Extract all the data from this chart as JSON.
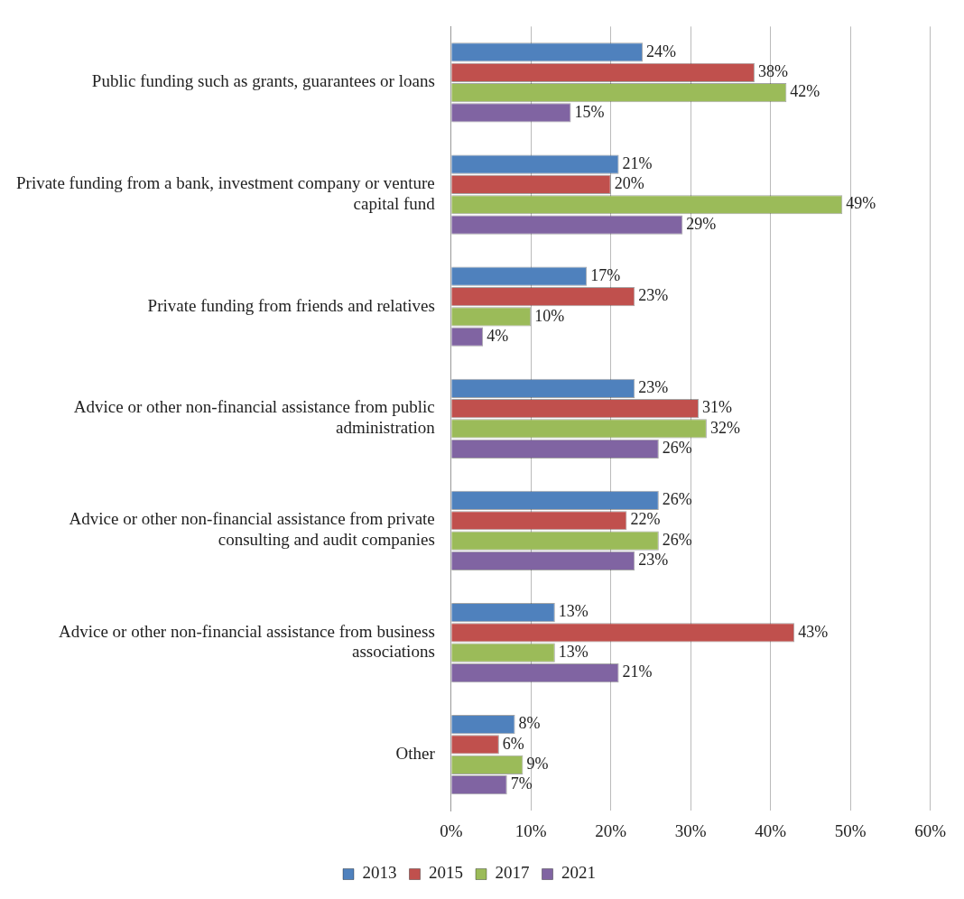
{
  "chart_data": {
    "type": "bar",
    "orientation": "horizontal",
    "categories": [
      "Public funding such as grants, guarantees or loans",
      "Private funding from a bank, investment company or venture capital fund",
      "Private funding from friends and relatives",
      "Advice or other non-financial assistance from public administration",
      "Advice or other non-financial assistance from private consulting and audit companies",
      "Advice or other non-financial assistance from business associations",
      "Other"
    ],
    "series": [
      {
        "name": "2013",
        "color": "#4f81bd",
        "values": [
          24,
          21,
          17,
          23,
          26,
          13,
          8
        ],
        "value_labels": [
          "24%",
          "21%",
          "17%",
          "23%",
          "26%",
          "13%",
          "8%"
        ]
      },
      {
        "name": "2015",
        "color": "#c0504d",
        "values": [
          38,
          20,
          23,
          31,
          22,
          43,
          6
        ],
        "value_labels": [
          "38%",
          "20%",
          "23%",
          "31%",
          "22%",
          "43%",
          "6%"
        ]
      },
      {
        "name": "2017",
        "color": "#9bbb59",
        "values": [
          42,
          49,
          10,
          32,
          26,
          13,
          9
        ],
        "value_labels": [
          "42%",
          "49%",
          "10%",
          "32%",
          "26%",
          "13%",
          "9%"
        ]
      },
      {
        "name": "2021",
        "color": "#8064a2",
        "values": [
          15,
          29,
          4,
          26,
          23,
          21,
          7
        ],
        "value_labels": [
          "15%",
          "29%",
          "4%",
          "26%",
          "23%",
          "21%",
          "7%"
        ]
      }
    ],
    "xlim": [
      0,
      60
    ],
    "xticks": [
      {
        "value": 0,
        "label": "0%"
      },
      {
        "value": 10,
        "label": "10%"
      },
      {
        "value": 20,
        "label": "20%"
      },
      {
        "value": 30,
        "label": "30%"
      },
      {
        "value": 40,
        "label": "40%"
      },
      {
        "value": 50,
        "label": "50%"
      },
      {
        "value": 60,
        "label": "60%"
      }
    ],
    "grid": "x",
    "legend": "bottom"
  }
}
